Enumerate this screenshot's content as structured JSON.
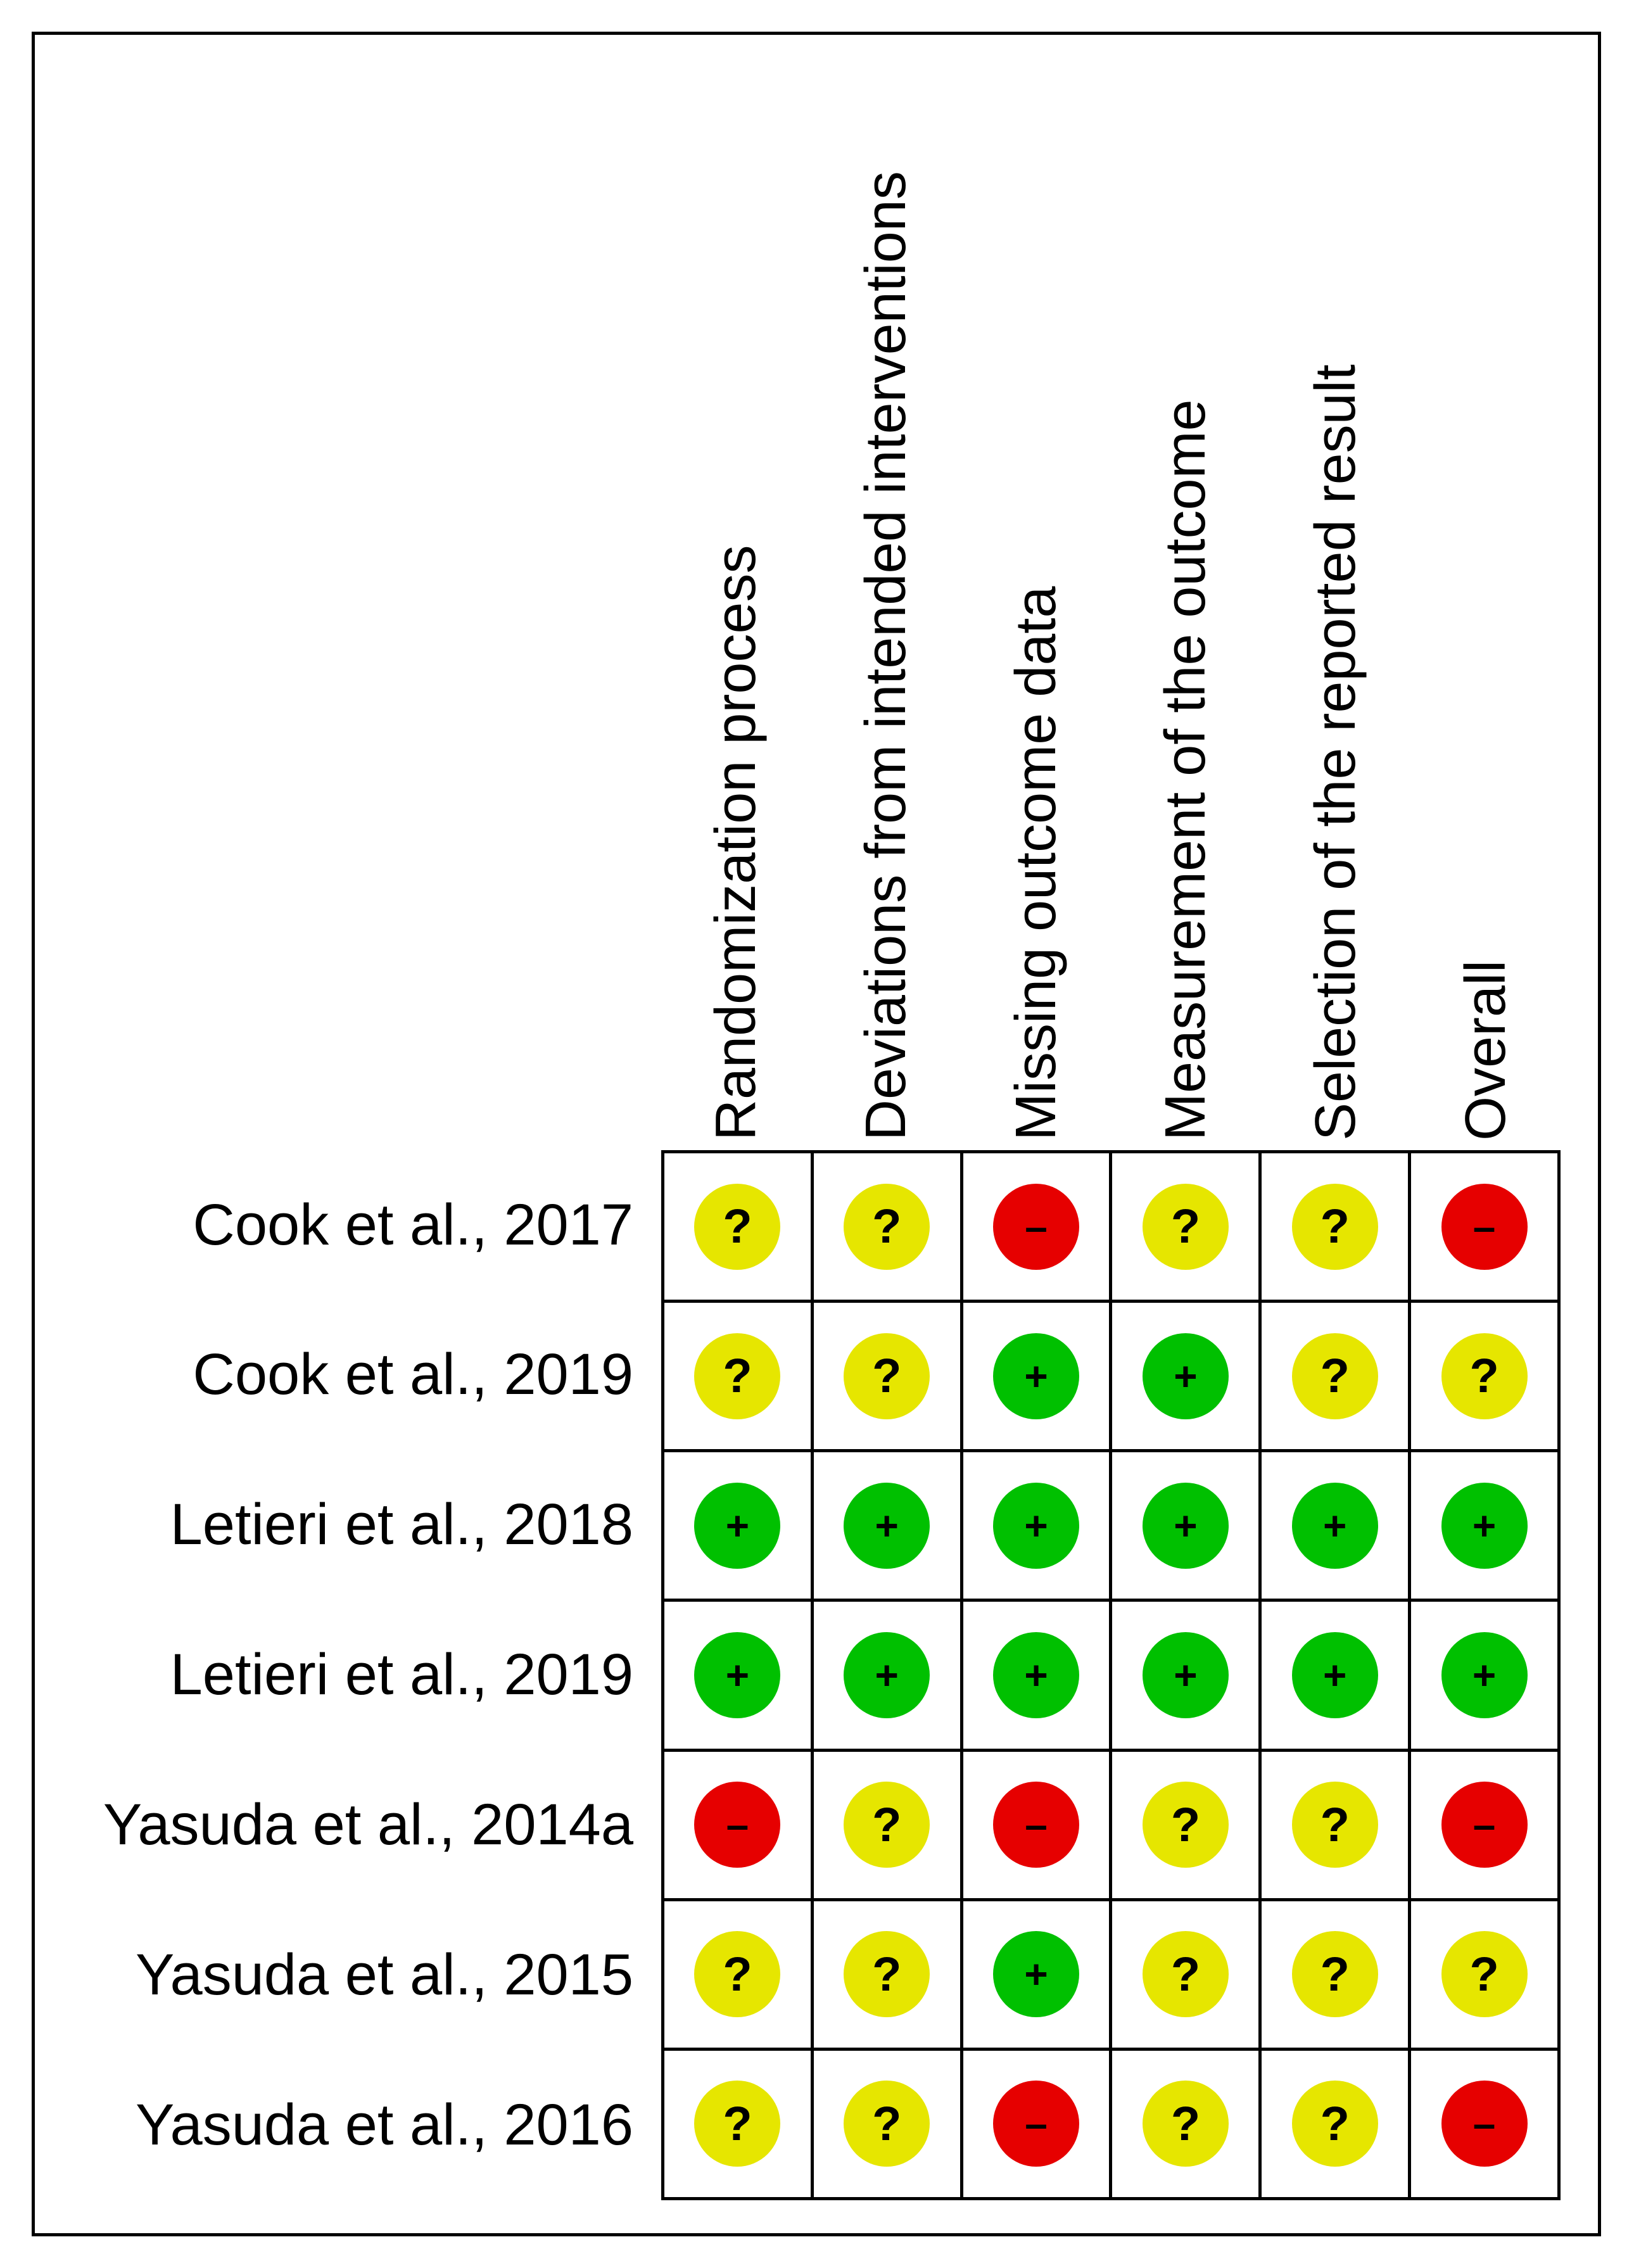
{
  "domains": [
    "Randomization process",
    "Deviations from intended interventions",
    "Missing outcome data",
    "Measurement of the outcome",
    "Selection of the reported result",
    "Overall"
  ],
  "studies": [
    {
      "name": "Cook et al., 2017",
      "judgements": [
        "?",
        "?",
        "–",
        "?",
        "?",
        "–"
      ]
    },
    {
      "name": "Cook et al., 2019",
      "judgements": [
        "?",
        "?",
        "+",
        "+",
        "?",
        "?"
      ]
    },
    {
      "name": "Letieri et al., 2018",
      "judgements": [
        "+",
        "+",
        "+",
        "+",
        "+",
        "+"
      ]
    },
    {
      "name": "Letieri et al., 2019",
      "judgements": [
        "+",
        "+",
        "+",
        "+",
        "+",
        "+"
      ]
    },
    {
      "name": "Yasuda et al., 2014a",
      "judgements": [
        "–",
        "?",
        "–",
        "?",
        "?",
        "–"
      ]
    },
    {
      "name": "Yasuda et al., 2015",
      "judgements": [
        "?",
        "?",
        "+",
        "?",
        "?",
        "?"
      ]
    },
    {
      "name": "Yasuda et al., 2016",
      "judgements": [
        "?",
        "?",
        "–",
        "?",
        "?",
        "–"
      ]
    }
  ],
  "colors": {
    "low_risk": "#00c000",
    "some_concerns": "#e6e600",
    "high_risk": "#e60000"
  }
}
